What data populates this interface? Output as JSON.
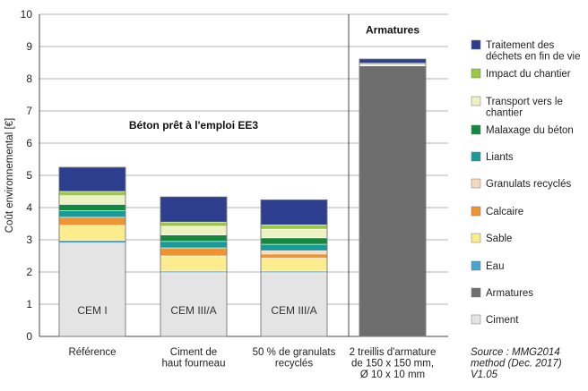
{
  "chart_data": {
    "type": "bar",
    "stacked": true,
    "ylabel": "Coût environnemental [€]",
    "ylim": [
      0,
      10
    ],
    "yticks": [
      0,
      1,
      2,
      3,
      4,
      5,
      6,
      7,
      8,
      9,
      10
    ],
    "grid": "horizontal",
    "legend_position": "right",
    "categories": [
      [
        "Référence"
      ],
      [
        "Ciment de",
        "haut fourneau"
      ],
      [
        "50 % de granulats",
        "recyclés"
      ],
      [
        "2 treillis d'armature",
        "de 150 x 150 mm,",
        "Ø 10 x 10 mm"
      ]
    ],
    "inner_labels": [
      "CEM I",
      "CEM III/A",
      "CEM III/A",
      ""
    ],
    "annotations": {
      "concrete_group": "Béton prêt à l'emploi EE3",
      "rebar_group": "Armatures"
    },
    "series": [
      {
        "name": "Ciment",
        "color": "#e4e4e4",
        "values": [
          2.9,
          1.98,
          1.98,
          0
        ]
      },
      {
        "name": "Armatures",
        "color": "#6e6e6e",
        "values": [
          0,
          0,
          0,
          8.4
        ]
      },
      {
        "name": "Eau",
        "color": "#4aa3c8",
        "values": [
          0.08,
          0.05,
          0.05,
          0
        ]
      },
      {
        "name": "Sable",
        "color": "#fbed8d",
        "values": [
          0.47,
          0.47,
          0.4,
          0
        ]
      },
      {
        "name": "Calcaire",
        "color": "#ef9433",
        "values": [
          0.25,
          0.25,
          0.13,
          0
        ]
      },
      {
        "name": "Granulats recyclés",
        "color": "#f6d8be",
        "values": [
          0,
          0,
          0.1,
          0
        ]
      },
      {
        "name": "Liants",
        "color": "#1b9a9a",
        "values": [
          0.2,
          0.2,
          0.2,
          0
        ]
      },
      {
        "name": "Malaxage du béton",
        "color": "#13883e",
        "values": [
          0.2,
          0.2,
          0.2,
          0
        ]
      },
      {
        "name": "Transport vers le\nchantier",
        "color": "#eef2c2",
        "values": [
          0.27,
          0.27,
          0.27,
          0.04
        ]
      },
      {
        "name": "Impact du chantier",
        "color": "#9cc944",
        "values": [
          0.13,
          0.13,
          0.13,
          0.04
        ]
      },
      {
        "name": "Traitement des\ndéchets en fin de vie",
        "color": "#2d3e8e",
        "values": [
          0.75,
          0.78,
          0.78,
          0.13
        ]
      }
    ],
    "legend_order": [
      "Traitement des\ndéchets en fin de vie",
      "Impact du chantier",
      "Transport vers le\nchantier",
      "Malaxage du béton",
      "Liants",
      "Granulats recyclés",
      "Calcaire",
      "Sable",
      "Eau",
      "Armatures",
      "Ciment"
    ],
    "source_note": [
      "Source : MMG2014",
      "method (Dec. 2017)",
      "V1.05"
    ]
  }
}
